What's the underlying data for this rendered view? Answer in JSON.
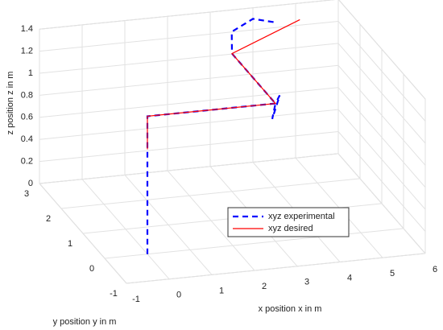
{
  "chart_data": {
    "type": "line3d",
    "xlabel": "x position  x in m",
    "ylabel": "y position  y in m",
    "zlabel": "z position  z in m",
    "xlim": [
      -1,
      6
    ],
    "ylim": [
      -1,
      3
    ],
    "zlim": [
      0,
      1.4
    ],
    "xticks": [
      -1,
      0,
      1,
      2,
      3,
      4,
      5,
      6
    ],
    "yticks": [
      -1,
      0,
      1,
      2,
      3
    ],
    "zticks": [
      0,
      0.2,
      0.4,
      0.6,
      0.8,
      1,
      1.2,
      1.4
    ],
    "grid": true,
    "series": [
      {
        "name": "xyz experimental",
        "color": "#0000ff",
        "line_style": "dashed",
        "x": [
          0,
          0,
          3,
          3.1,
          2.95,
          3,
          3,
          3.3,
          4,
          4.5
        ],
        "y": [
          0,
          0,
          0,
          0,
          0.05,
          0,
          2,
          2.6,
          3,
          3
        ],
        "z": [
          0,
          1.25,
          1.25,
          1.32,
          1.1,
          1.25,
          1.25,
          1.3,
          1.3,
          1.25
        ]
      },
      {
        "name": "xyz desired",
        "color": "#ff0000",
        "line_style": "solid",
        "x": [
          0,
          0,
          3,
          3,
          5.1
        ],
        "y": [
          0,
          0,
          0,
          2,
          3
        ],
        "z": [
          0.95,
          1.25,
          1.25,
          1.25,
          1.25
        ]
      }
    ]
  }
}
